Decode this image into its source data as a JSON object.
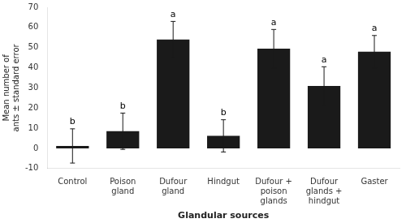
{
  "chart_data": {
    "type": "bar",
    "categories": [
      "Control",
      "Poison\ngland",
      "Dufour\ngland",
      "Hindgut",
      "Dufour +\npoison\nglands",
      "Dufour\nglands +\nhindgut",
      "Gaster"
    ],
    "values": [
      1.2,
      8.5,
      54.0,
      6.2,
      49.5,
      31.0,
      48.0
    ],
    "errors": [
      8.5,
      9.0,
      9.0,
      8.0,
      9.5,
      9.5,
      8.0
    ],
    "letters": [
      "b",
      "b",
      "a",
      "b",
      "a",
      "a",
      "a"
    ],
    "color": "#1a1a1a",
    "xlabel": "Glandular sources",
    "ylabel": "Mean number of\nants ± standard error",
    "ylim": [
      -10,
      70
    ],
    "yticks": [
      -10,
      0,
      10,
      20,
      30,
      40,
      50,
      60,
      70
    ],
    "grid": false
  }
}
